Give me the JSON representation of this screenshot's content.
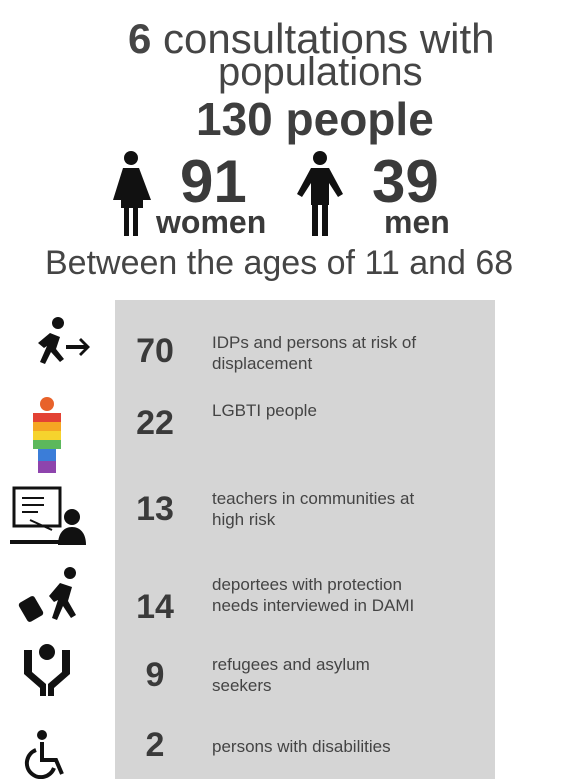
{
  "header": {
    "count": 6,
    "line1": "consultations with",
    "line2": "populations",
    "total": "130 people",
    "women_count": 91,
    "women_label": "women",
    "men_count": 39,
    "men_label": "men",
    "ages": "Between the ages of 11 and 68"
  },
  "groups": [
    {
      "count": 70,
      "label": [
        "IDPs and persons at risk of",
        "displacement"
      ]
    },
    {
      "count": 22,
      "label": [
        "LGBTI people"
      ]
    },
    {
      "count": 13,
      "label": [
        "teachers in communities at",
        "high risk"
      ]
    },
    {
      "count": 14,
      "label": [
        "deportees with protection",
        "needs interviewed in DAMI"
      ]
    },
    {
      "count": 9,
      "label": [
        "refugees and asylum",
        "seekers"
      ]
    },
    {
      "count": 2,
      "label": [
        "persons with disabilities"
      ]
    }
  ]
}
